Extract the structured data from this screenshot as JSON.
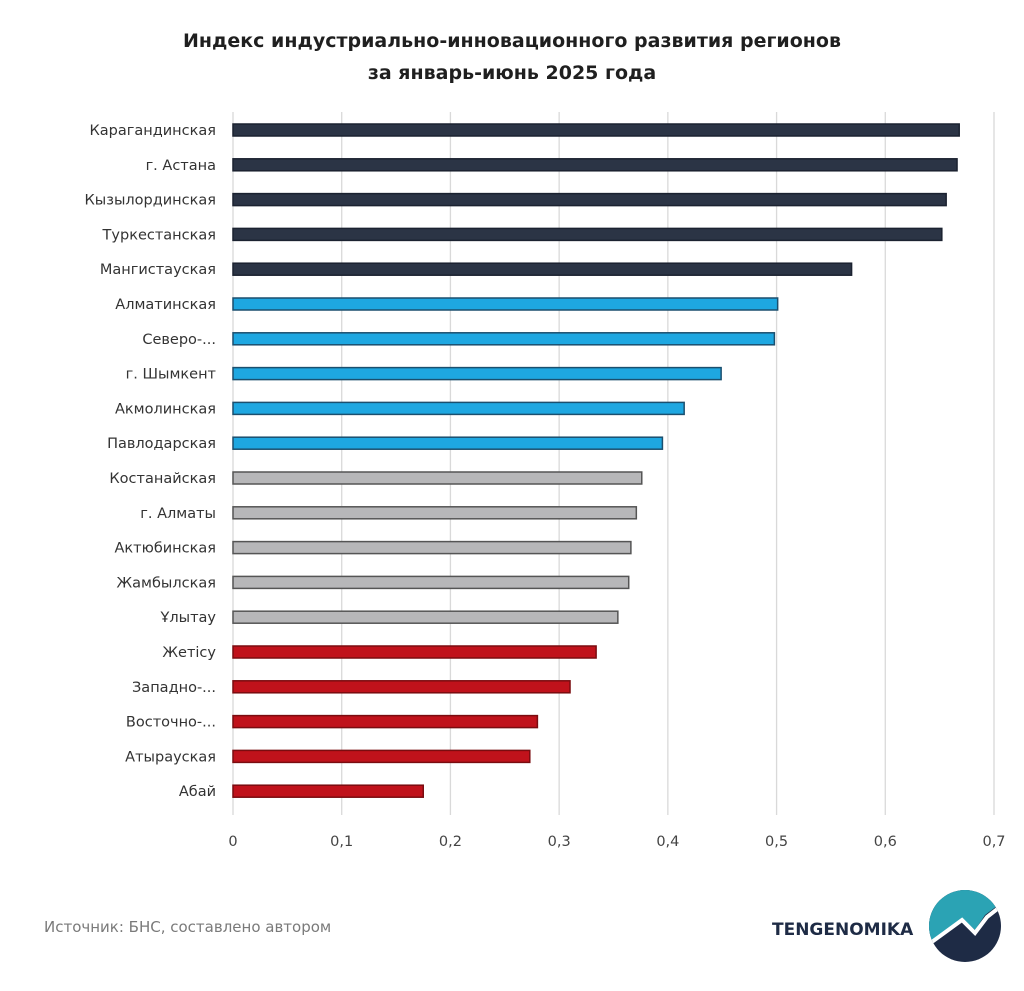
{
  "chart_data": {
    "type": "bar",
    "orientation": "horizontal",
    "title": [
      "Индекс индустриально-инновационного развития регионов",
      "за январь-июнь 2025 года"
    ],
    "categories": [
      "Карагандинская",
      "г. Астана",
      "Кызылординская",
      "Туркестанская",
      "Мангистауская",
      "Алматинская",
      "Северо-...",
      "г. Шымкент",
      "Акмолинская",
      "Павлодарская",
      "Костанайская",
      "г. Алматы",
      "Актюбинская",
      "Жамбылская",
      "Ұлытау",
      "Жетісу",
      "Западно-...",
      "Восточно-...",
      "Атырауская",
      "Абай"
    ],
    "values": [
      0.668,
      0.666,
      0.656,
      0.652,
      0.569,
      0.501,
      0.498,
      0.449,
      0.415,
      0.395,
      0.376,
      0.371,
      0.366,
      0.364,
      0.354,
      0.334,
      0.31,
      0.28,
      0.273,
      0.175
    ],
    "groups": [
      0,
      0,
      0,
      0,
      0,
      1,
      1,
      1,
      1,
      1,
      2,
      2,
      2,
      2,
      2,
      3,
      3,
      3,
      3,
      3
    ],
    "group_colors": [
      "#2b3445",
      "#1ea7e1",
      "#b7b7b9",
      "#c0121b"
    ],
    "group_outline": [
      "#1b2230",
      "#1b4f6e",
      "#555555",
      "#7a0c10"
    ],
    "xlim": [
      0,
      0.7
    ],
    "ticks": [
      "0",
      "0,1",
      "0,2",
      "0,3",
      "0,4",
      "0,5",
      "0,6",
      "0,7"
    ],
    "tick_values": [
      0,
      0.1,
      0.2,
      0.3,
      0.4,
      0.5,
      0.6,
      0.7
    ],
    "grid": true,
    "xlabel": "",
    "ylabel": ""
  },
  "footer": {
    "source": "Источник: БНС, составлено автором",
    "brand": "TENGENOMIKA"
  }
}
